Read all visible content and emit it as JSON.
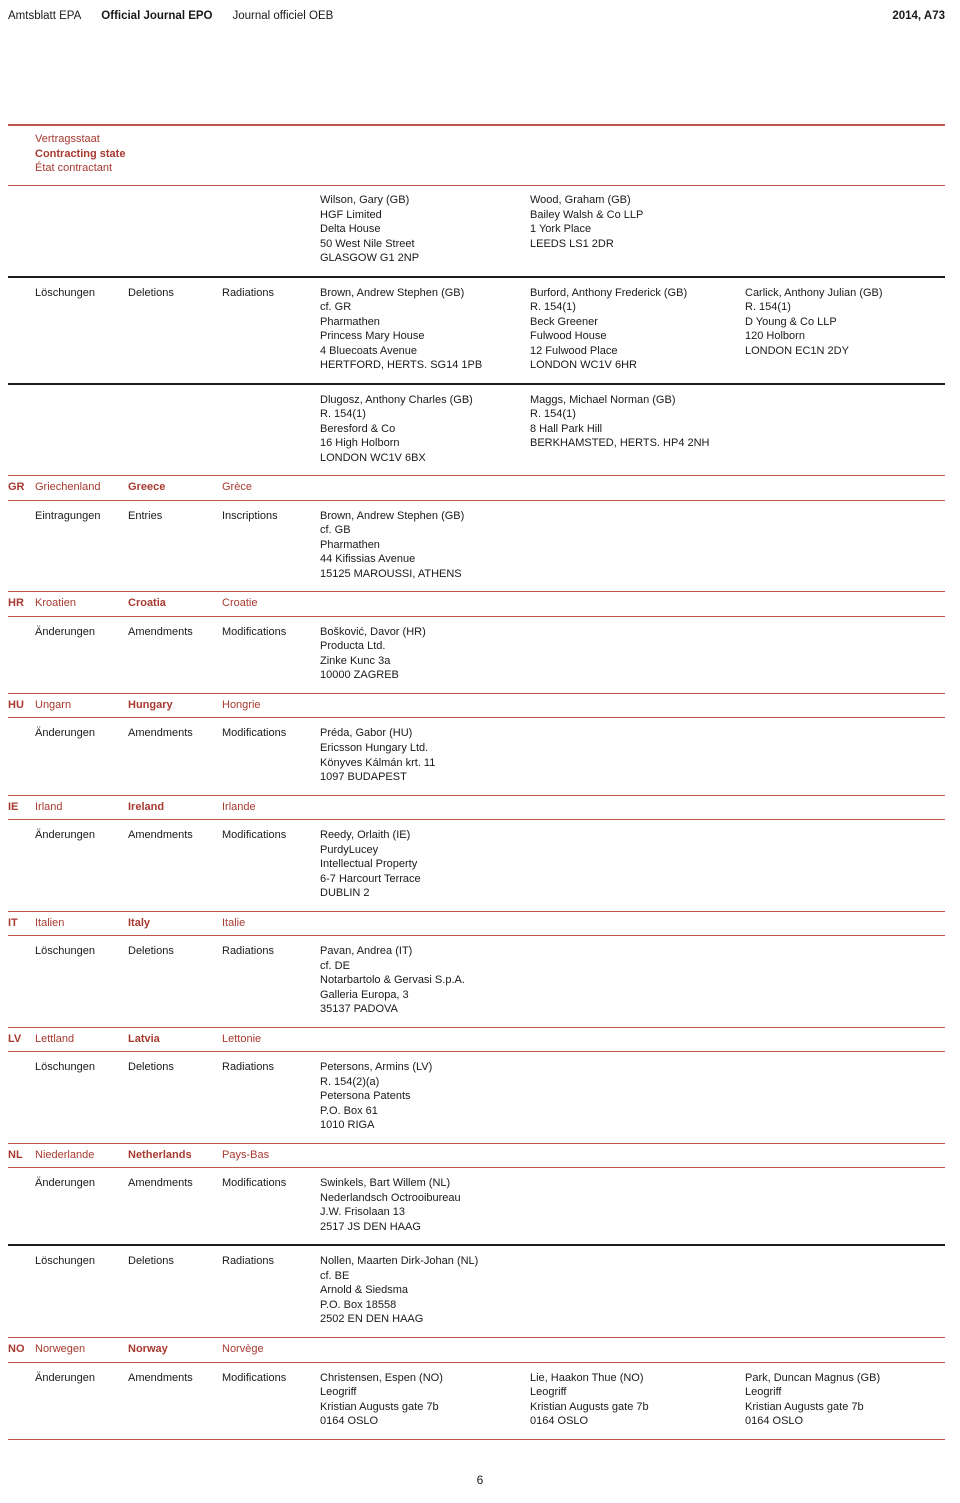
{
  "header": {
    "journal_de": "Amtsblatt EPA",
    "journal_en": "Official Journal EPO",
    "journal_fr": "Journal officiel OEB",
    "issue": "2014, A73"
  },
  "colors": {
    "red_text": "#a83a30",
    "rule_red": "#bf5748",
    "rule_black": "#1c1c1c"
  },
  "contracting_state_header": {
    "de": "Vertragsstaat",
    "en": "Contracting state",
    "fr": "État contractant"
  },
  "rows": {
    "top_agents": {
      "labels": {
        "de": "",
        "en": "",
        "fr": ""
      },
      "entries": [
        "Wilson, Gary (GB)\nHGF Limited\nDelta House\n50 West Nile Street\nGLASGOW G1 2NP",
        "Wood, Graham (GB)\nBailey Walsh & Co LLP\n1 York Place\nLEEDS LS1 2DR",
        ""
      ]
    },
    "deletions_1": {
      "labels": {
        "de": "Löschungen",
        "en": "Deletions",
        "fr": "Radiations"
      },
      "entries": [
        "Brown, Andrew Stephen (GB)\ncf. GR\nPharmathen\nPrincess Mary House\n4 Bluecoats Avenue\nHERTFORD, HERTS. SG14 1PB",
        "Burford, Anthony Frederick (GB)\nR. 154(1)\nBeck Greener\nFulwood House\n12 Fulwood Place\nLONDON WC1V 6HR",
        "Carlick, Anthony Julian (GB)\nR. 154(1)\nD Young & Co LLP\n120 Holborn\nLONDON EC1N 2DY"
      ]
    },
    "deletions_2": {
      "labels": {
        "de": "",
        "en": "",
        "fr": ""
      },
      "entries": [
        "Dlugosz, Anthony Charles (GB)\nR. 154(1)\nBeresford & Co\n16 High Holborn\nLONDON WC1V 6BX",
        "Maggs, Michael Norman (GB)\nR. 154(1)\n8 Hall Park Hill\nBERKHAMSTED, HERTS. HP4 2NH",
        ""
      ]
    },
    "gr": {
      "code": "GR",
      "de": "Griechenland",
      "en": "Greece",
      "fr": "Grèce"
    },
    "gr_entries": {
      "labels": {
        "de": "Eintragungen",
        "en": "Entries",
        "fr": "Inscriptions"
      },
      "entries": [
        "Brown, Andrew Stephen (GB)\ncf. GB\nPharmathen\n44 Kifissias Avenue\n15125 MAROUSSI, ATHENS",
        "",
        ""
      ]
    },
    "hr": {
      "code": "HR",
      "de": "Kroatien",
      "en": "Croatia",
      "fr": "Croatie"
    },
    "hr_amendments": {
      "labels": {
        "de": "Änderungen",
        "en": "Amendments",
        "fr": "Modifications"
      },
      "entries": [
        "Bošković, Davor (HR)\nProducta Ltd.\nZinke Kunc 3a\n10000 ZAGREB",
        "",
        ""
      ]
    },
    "hu": {
      "code": "HU",
      "de": "Ungarn",
      "en": "Hungary",
      "fr": "Hongrie"
    },
    "hu_amendments": {
      "labels": {
        "de": "Änderungen",
        "en": "Amendments",
        "fr": "Modifications"
      },
      "entries": [
        "Préda, Gabor (HU)\nEricsson Hungary Ltd.\nKönyves Kálmán krt. 11\n1097 BUDAPEST",
        "",
        ""
      ]
    },
    "ie": {
      "code": "IE",
      "de": "Irland",
      "en": "Ireland",
      "fr": "Irlande"
    },
    "ie_amendments": {
      "labels": {
        "de": "Änderungen",
        "en": "Amendments",
        "fr": "Modifications"
      },
      "entries": [
        "Reedy, Orlaith (IE)\nPurdyLucey\nIntellectual Property\n6-7 Harcourt Terrace\nDUBLIN 2",
        "",
        ""
      ]
    },
    "it": {
      "code": "IT",
      "de": "Italien",
      "en": "Italy",
      "fr": "Italie"
    },
    "it_deletions": {
      "labels": {
        "de": "Löschungen",
        "en": "Deletions",
        "fr": "Radiations"
      },
      "entries": [
        "Pavan, Andrea (IT)\ncf. DE\nNotarbartolo & Gervasi S.p.A.\nGalleria Europa, 3\n35137 PADOVA",
        "",
        ""
      ]
    },
    "lv": {
      "code": "LV",
      "de": "Lettland",
      "en": "Latvia",
      "fr": "Lettonie"
    },
    "lv_deletions": {
      "labels": {
        "de": "Löschungen",
        "en": "Deletions",
        "fr": "Radiations"
      },
      "entries": [
        "Petersons, Armins (LV)\nR. 154(2)(a)\nPetersona Patents\nP.O. Box 61\n1010 RIGA",
        "",
        ""
      ]
    },
    "nl": {
      "code": "NL",
      "de": "Niederlande",
      "en": "Netherlands",
      "fr": "Pays-Bas"
    },
    "nl_amendments": {
      "labels": {
        "de": "Änderungen",
        "en": "Amendments",
        "fr": "Modifications"
      },
      "entries": [
        "Swinkels, Bart Willem (NL)\nNederlandsch Octrooibureau\nJ.W. Frisolaan 13\n2517 JS DEN HAAG",
        "",
        ""
      ]
    },
    "nl_deletions": {
      "labels": {
        "de": "Löschungen",
        "en": "Deletions",
        "fr": "Radiations"
      },
      "entries": [
        "Nollen, Maarten Dirk-Johan (NL)\ncf. BE\nArnold & Siedsma\nP.O. Box 18558\n2502 EN DEN HAAG",
        "",
        ""
      ]
    },
    "no": {
      "code": "NO",
      "de": "Norwegen",
      "en": "Norway",
      "fr": "Norvège"
    },
    "no_amendments": {
      "labels": {
        "de": "Änderungen",
        "en": "Amendments",
        "fr": "Modifications"
      },
      "entries": [
        "Christensen, Espen (NO)\nLeogriff\nKristian Augusts gate 7b\n0164 OSLO",
        "Lie, Haakon Thue (NO)\nLeogriff\nKristian Augusts gate 7b\n0164 OSLO",
        "Park, Duncan Magnus (GB)\nLeogriff\nKristian Augusts gate 7b\n0164 OSLO"
      ]
    }
  },
  "page_number": "6"
}
